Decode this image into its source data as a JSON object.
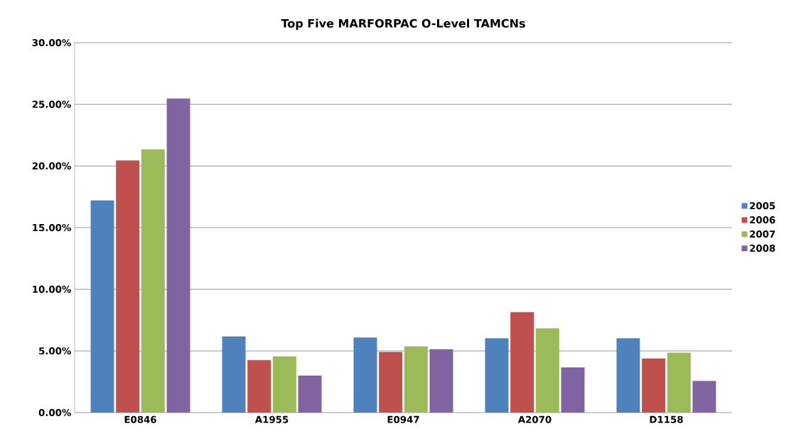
{
  "chart_data": {
    "type": "bar",
    "title": "Top Five MARFORPAC O-Level TAMCNs",
    "categories": [
      "E0846",
      "A1955",
      "E0947",
      "A2070",
      "D1158"
    ],
    "series": [
      {
        "name": "2005",
        "color": "#4f81bd",
        "values": [
          17.2,
          6.17,
          6.09,
          6.03,
          6.03
        ]
      },
      {
        "name": "2006",
        "color": "#c0504d",
        "values": [
          20.45,
          4.26,
          4.92,
          8.15,
          4.38
        ]
      },
      {
        "name": "2007",
        "color": "#9bbb59",
        "values": [
          21.34,
          4.55,
          5.37,
          6.83,
          4.86
        ]
      },
      {
        "name": "2008",
        "color": "#8064a2",
        "values": [
          25.47,
          3.0,
          5.14,
          3.66,
          2.57
        ]
      }
    ],
    "ylim": [
      0,
      30
    ],
    "yticks": [
      {
        "value": 0,
        "label": "0.00%"
      },
      {
        "value": 5,
        "label": "5.00%"
      },
      {
        "value": 10,
        "label": "10.00%"
      },
      {
        "value": 15,
        "label": "15.00%"
      },
      {
        "value": 20,
        "label": "20.00%"
      },
      {
        "value": 25,
        "label": "25.00%"
      },
      {
        "value": 30,
        "label": "30.00%"
      }
    ],
    "grid": "y",
    "legend": "right"
  }
}
